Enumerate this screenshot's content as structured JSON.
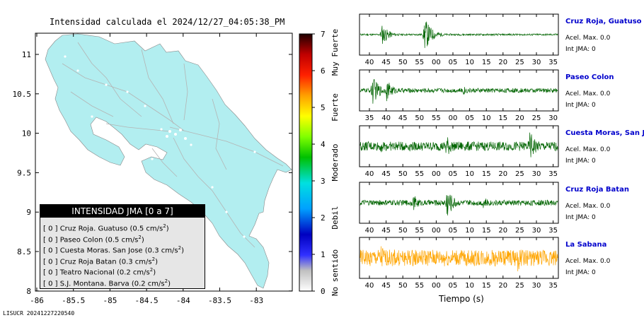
{
  "map": {
    "title": "Intensidad calculada el 2024/12/27_04:05:38_PM",
    "footer": "LISUCR 20241227220540",
    "x_ticks": [
      "-86",
      "-85.5",
      "-85",
      "-84.5",
      "-84",
      "-83.5",
      "-83"
    ],
    "y_ticks": [
      "11",
      "10.5",
      "10",
      "9.5",
      "9",
      "8.5",
      "8"
    ],
    "land_color": "#b2eef0",
    "road_color": "#b4b4b4"
  },
  "legend": {
    "title": "INTENSIDAD JMA [0 a 7]",
    "items": [
      {
        "level": "[ 0 ]",
        "name": "Cruz Roja. Guatuso",
        "value": "(0.5 cm/s",
        "exp": "2",
        "close": ")"
      },
      {
        "level": "[ 0 ]",
        "name": "Paseo Colon",
        "value": "(0.5 cm/s",
        "exp": "2",
        "close": ")"
      },
      {
        "level": "[ 0 ]",
        "name": "Cuesta Moras. San Jose",
        "value": "(0.3 cm/s",
        "exp": "2",
        "close": ")"
      },
      {
        "level": "[ 0 ]",
        "name": "Cruz Roja Batan",
        "value": "(0.3 cm/s",
        "exp": "2",
        "close": ")"
      },
      {
        "level": "[ 0 ]",
        "name": "Teatro Nacional",
        "value": "(0.2 cm/s",
        "exp": "2",
        "close": ")"
      },
      {
        "level": "[ 0 ]",
        "name": "S.J. Montana. Barva",
        "value": "(0.2 cm/s",
        "exp": "2",
        "close": ")"
      }
    ]
  },
  "colorbar": {
    "ticks": [
      "0",
      "1",
      "2",
      "3",
      "4",
      "5",
      "6",
      "7"
    ],
    "categories": [
      "No sentido",
      "Debil",
      "Moderado",
      "Fuerte",
      "Muy Fuerte"
    ]
  },
  "stations": [
    {
      "name": "Cruz Roja, Guatuso",
      "acel": "Acel. Max. 0.0",
      "int": "Int JMA: 0",
      "ticks": [
        "40",
        "45",
        "50",
        "55",
        "00",
        "05",
        "10",
        "15",
        "20",
        "25",
        "30",
        "35"
      ],
      "color": "#006400"
    },
    {
      "name": "Paseo Colon",
      "acel": "Acel. Max. 0.0",
      "int": "Int JMA: 0",
      "ticks": [
        "35",
        "40",
        "45",
        "50",
        "55",
        "00",
        "05",
        "10",
        "15",
        "20",
        "25",
        "30"
      ],
      "color": "#006400"
    },
    {
      "name": "Cuesta Moras, San Jose",
      "acel": "Acel. Max. 0.0",
      "int": "Int JMA: 0",
      "ticks": [
        "40",
        "45",
        "50",
        "55",
        "00",
        "05",
        "10",
        "15",
        "20",
        "25",
        "30",
        "35"
      ],
      "color": "#006400"
    },
    {
      "name": "Cruz Roja Batan",
      "acel": "Acel. Max. 0.0",
      "int": "Int JMA: 0",
      "ticks": [
        "40",
        "45",
        "50",
        "55",
        "00",
        "05",
        "10",
        "15",
        "20",
        "25",
        "30",
        "35"
      ],
      "color": "#006400"
    },
    {
      "name": "La Sabana",
      "acel": "Acel. Max. 0.0",
      "int": "Int JMA: 0",
      "ticks": [
        "40",
        "45",
        "50",
        "55",
        "00",
        "05",
        "10",
        "15",
        "20",
        "25",
        "30",
        "35"
      ],
      "color": "#ffa500"
    }
  ],
  "waveforms_xlabel": "Tiempo (s)",
  "chart_data": {
    "type": "line",
    "title": "Intensidad calculada el 2024/12/27_04:05:38_PM",
    "xlabel": "Tiempo (s)",
    "series": [
      {
        "name": "Cruz Roja, Guatuso",
        "bursts": [
          [
            43.5,
            0.6
          ],
          [
            56.5,
            1.0
          ]
        ],
        "noise": 0.05
      },
      {
        "name": "Paseo Colon",
        "bursts": [
          [
            40.5,
            0.9
          ],
          [
            45,
            0.6
          ],
          [
            68,
            0.3
          ]
        ],
        "noise": 0.12
      },
      {
        "name": "Cuesta Moras, San Jose",
        "bursts": [
          [
            43,
            0.4
          ],
          [
            63,
            0.7
          ],
          [
            88.5,
            0.9
          ]
        ],
        "noise": 0.25
      },
      {
        "name": "Cruz Roja Batan",
        "bursts": [
          [
            53,
            0.5
          ],
          [
            63,
            1.0
          ],
          [
            74,
            0.4
          ]
        ],
        "noise": 0.15
      },
      {
        "name": "La Sabana",
        "bursts": [
          [
            43,
            0.9
          ],
          [
            62,
            0.7
          ],
          [
            84.5,
            0.9
          ]
        ],
        "noise": 0.45
      }
    ]
  }
}
